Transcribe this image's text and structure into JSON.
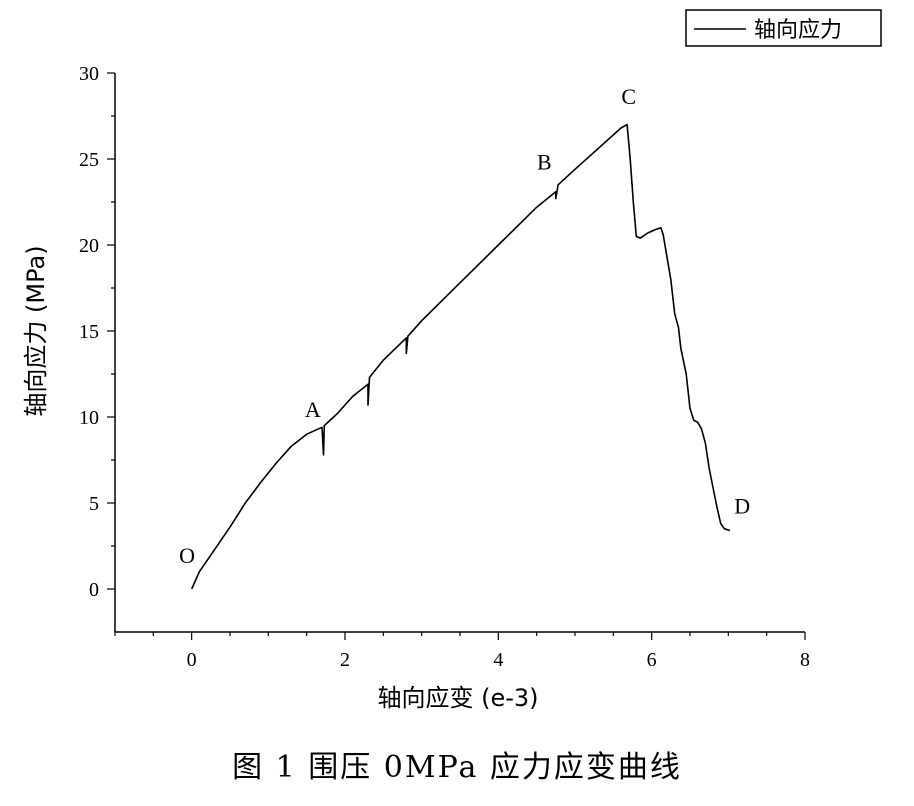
{
  "caption": "图 1 围压 0MPa 应力应变曲线",
  "chart_data": {
    "type": "line",
    "xlabel": "轴向应变 (e-3)",
    "ylabel": "轴向应力 (MPa)",
    "xlim": [
      -1,
      8
    ],
    "ylim": [
      -2.5,
      30
    ],
    "xticks": [
      0,
      2,
      4,
      6,
      8
    ],
    "yticks": [
      0,
      5,
      10,
      15,
      20,
      25,
      30
    ],
    "grid": false,
    "legend": {
      "position": "top-right",
      "entries": [
        "轴向应力"
      ]
    },
    "series": [
      {
        "name": "轴向应力",
        "color": "#000000",
        "x": [
          0.0,
          0.1,
          0.3,
          0.5,
          0.7,
          0.9,
          1.1,
          1.3,
          1.5,
          1.7,
          1.72,
          1.73,
          1.9,
          2.1,
          2.3,
          2.3,
          2.32,
          2.5,
          2.8,
          2.8,
          2.82,
          3.0,
          3.5,
          4.0,
          4.5,
          4.75,
          4.75,
          4.78,
          5.0,
          5.3,
          5.6,
          5.68,
          5.72,
          5.76,
          5.8,
          5.85,
          5.95,
          6.05,
          6.12,
          6.15,
          6.25,
          6.3,
          6.35,
          6.38,
          6.45,
          6.5,
          6.55,
          6.6,
          6.65,
          6.7,
          6.75,
          6.85,
          6.9,
          6.95,
          7.02
        ],
        "y": [
          0.0,
          1.0,
          2.3,
          3.6,
          5.0,
          6.2,
          7.3,
          8.3,
          9.0,
          9.4,
          7.8,
          9.5,
          10.2,
          11.2,
          11.9,
          10.7,
          12.3,
          13.3,
          14.6,
          13.7,
          14.7,
          15.6,
          17.8,
          20.0,
          22.2,
          23.1,
          22.7,
          23.5,
          24.4,
          25.6,
          26.8,
          27.0,
          25.0,
          22.5,
          20.5,
          20.4,
          20.7,
          20.9,
          21.0,
          20.6,
          18.0,
          16.0,
          15.2,
          14.0,
          12.5,
          10.5,
          9.8,
          9.7,
          9.3,
          8.5,
          7.0,
          4.8,
          3.8,
          3.5,
          3.4
        ]
      }
    ],
    "annotations": [
      {
        "text": "O",
        "x": -0.06,
        "y": 1.5
      },
      {
        "text": "A",
        "x": 1.58,
        "y": 10.0
      },
      {
        "text": "B",
        "x": 4.6,
        "y": 24.4
      },
      {
        "text": "C",
        "x": 5.7,
        "y": 28.2
      },
      {
        "text": "D",
        "x": 7.18,
        "y": 4.4
      }
    ]
  }
}
